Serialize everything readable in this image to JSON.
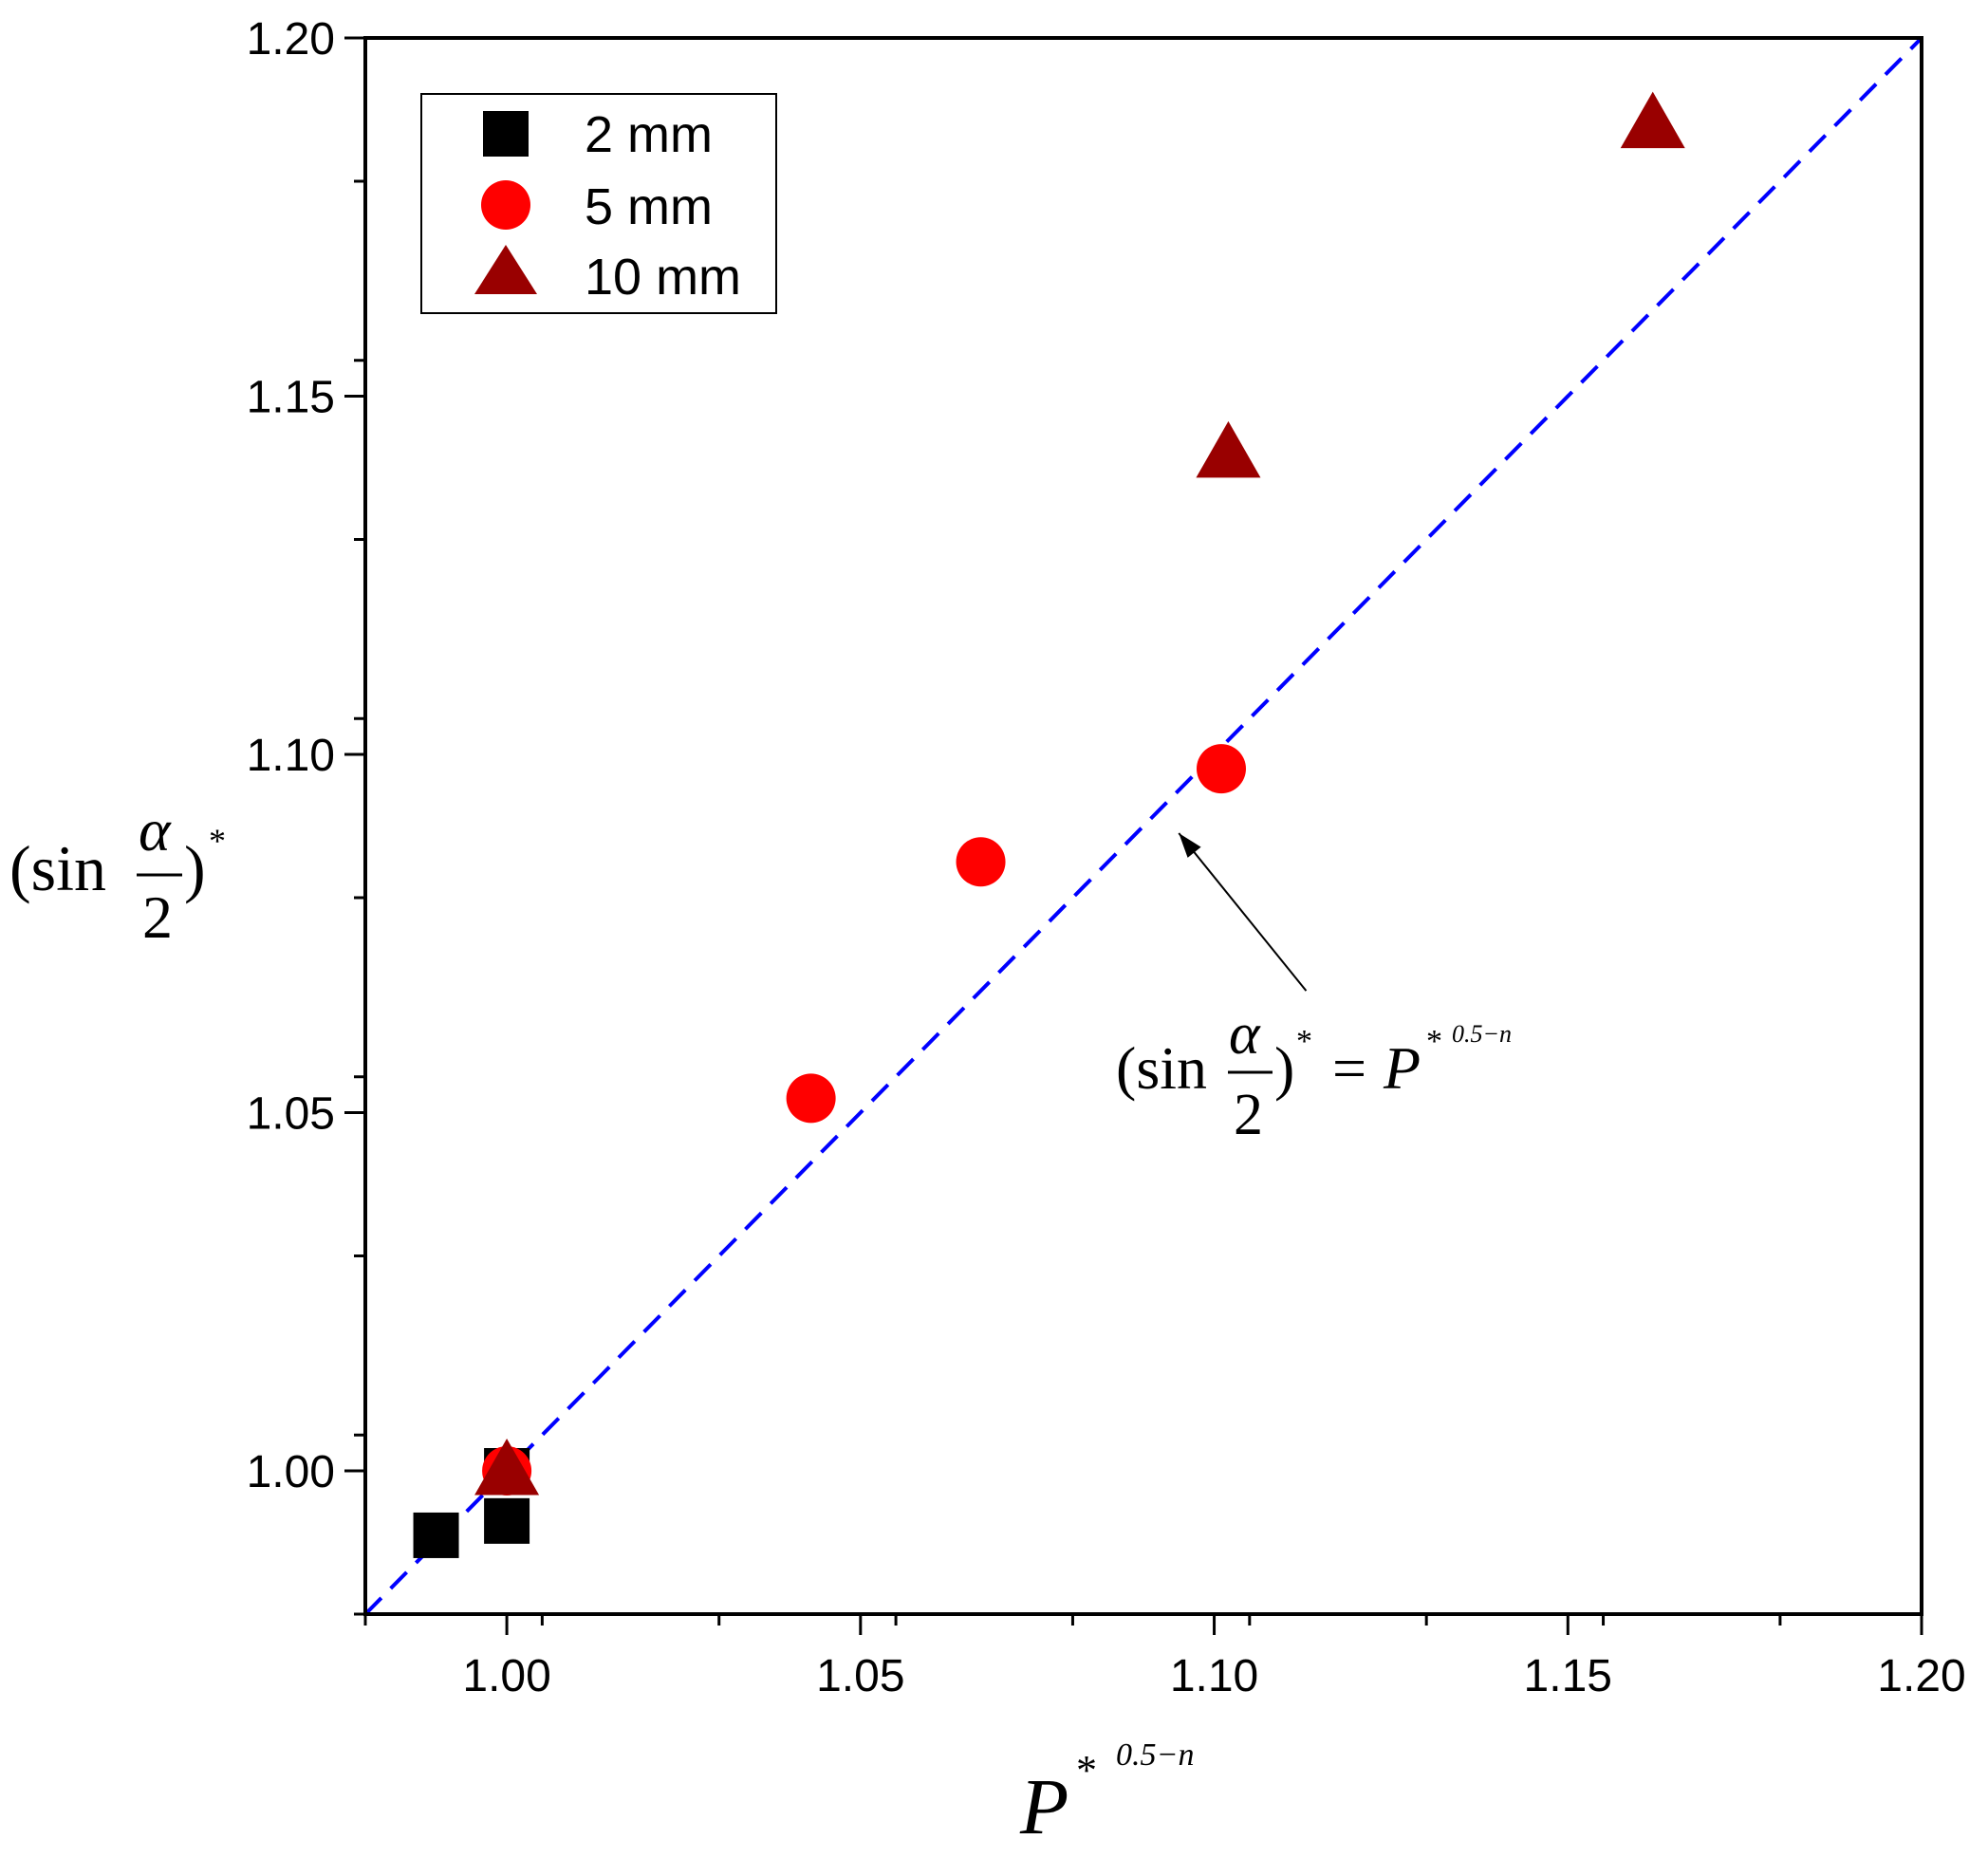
{
  "chart_data": {
    "type": "scatter",
    "title": "",
    "xlabel": {
      "base": "P",
      "star": "*",
      "exponent": "0.5−n"
    },
    "ylabel": {
      "open": "(sin",
      "numerator": "α",
      "denominator": "2",
      "close": ")",
      "star": "*"
    },
    "xlim": [
      0.98,
      1.2
    ],
    "ylim": [
      0.98,
      1.2
    ],
    "x_ticks": [
      1.0,
      1.05,
      1.1,
      1.15,
      1.2
    ],
    "x_tick_labels": [
      "1.00",
      "1.05",
      "1.10",
      "1.15",
      "1.20"
    ],
    "y_ticks": [
      1.0,
      1.05,
      1.1,
      1.15,
      1.2
    ],
    "y_tick_labels": [
      "1.00",
      "1.05",
      "1.10",
      "1.15",
      "1.20"
    ],
    "minor_tick_step": 0.025,
    "grid": false,
    "legend_position": "top-left",
    "series": [
      {
        "name": "2 mm",
        "marker": "square",
        "color": "#000000",
        "points": [
          [
            0.99,
            0.991
          ],
          [
            1.0,
            0.993
          ],
          [
            1.0,
            1.0
          ]
        ]
      },
      {
        "name": "5 mm",
        "marker": "circle",
        "color": "#ff0000",
        "points": [
          [
            1.0,
            1.0
          ],
          [
            1.043,
            1.052
          ],
          [
            1.067,
            1.085
          ],
          [
            1.101,
            1.098
          ]
        ]
      },
      {
        "name": "10 mm",
        "marker": "triangle",
        "color": "#990000",
        "points": [
          [
            1.0,
            1.0
          ],
          [
            1.102,
            1.142
          ],
          [
            1.162,
            1.188
          ]
        ]
      }
    ],
    "reference_line": {
      "style": "dashed",
      "color": "#0000ff",
      "from": [
        0.98,
        0.98
      ],
      "to": [
        1.2,
        1.2
      ]
    },
    "annotation": {
      "open": "(sin",
      "numerator": "α",
      "denominator": "2",
      "close": ")",
      "star": "*",
      "equals": "=",
      "rhs_base": "P",
      "rhs_star": "*",
      "rhs_exponent": "0.5−n",
      "arrow_tip": [
        1.095,
        1.089
      ],
      "arrow_tail": [
        1.113,
        1.067
      ]
    }
  }
}
